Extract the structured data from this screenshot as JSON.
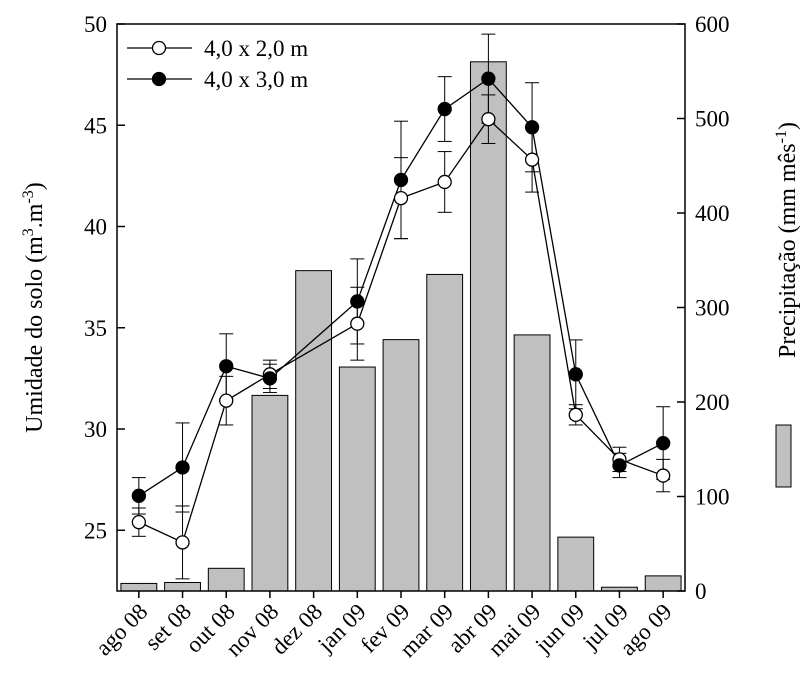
{
  "chart_data": {
    "type": "bar+line",
    "categories": [
      "ago 08",
      "set 08",
      "out 08",
      "nov 08",
      "dez 08",
      "jan 09",
      "fev 09",
      "mar 09",
      "abr 09",
      "mai 09",
      "jun 09",
      "jul 09",
      "ago 09"
    ],
    "bars": {
      "name": "Precipitação (mm mês-1)",
      "color": "#c0c0c0",
      "axis": "right",
      "values": [
        8,
        9,
        24,
        207,
        339,
        237,
        266,
        335,
        560,
        271,
        57,
        4,
        16
      ]
    },
    "series": [
      {
        "name": "4,0 x 2,0 m",
        "marker": "open-circle",
        "axis": "left",
        "values": [
          25.4,
          24.4,
          31.4,
          32.7,
          null,
          35.2,
          41.4,
          42.2,
          45.3,
          43.3,
          30.7,
          28.5,
          27.7
        ],
        "error": [
          0.7,
          1.8,
          1.2,
          0.7,
          null,
          1.8,
          2.0,
          1.5,
          1.2,
          1.6,
          0.5,
          0.6,
          0.8
        ]
      },
      {
        "name": "4,0 x 3,0 m",
        "marker": "filled-circle",
        "axis": "left",
        "values": [
          26.7,
          28.1,
          33.1,
          32.5,
          null,
          36.3,
          42.3,
          45.8,
          47.3,
          44.9,
          32.7,
          28.2,
          29.3
        ],
        "error": [
          0.9,
          2.2,
          1.6,
          0.7,
          null,
          2.1,
          2.9,
          1.6,
          2.2,
          2.2,
          1.7,
          0.6,
          1.8
        ]
      }
    ],
    "ylabel_left": {
      "pre": "Umidade do solo (m",
      "sup1": "3",
      "mid": ".m",
      "sup2": "-3",
      "post": ")"
    },
    "ylabel_right": {
      "pre": "Precipitação (mm mês",
      "sup": "-1",
      "post": ")"
    },
    "ylim_left": [
      22,
      50
    ],
    "ylim_right": [
      0,
      600
    ],
    "yticks_left": [
      "25",
      "30",
      "35",
      "40",
      "45",
      "50"
    ],
    "yticks_right": [
      "0",
      "100",
      "200",
      "300",
      "400",
      "500",
      "600"
    ],
    "legend_placement": "top-left",
    "grid": false
  }
}
